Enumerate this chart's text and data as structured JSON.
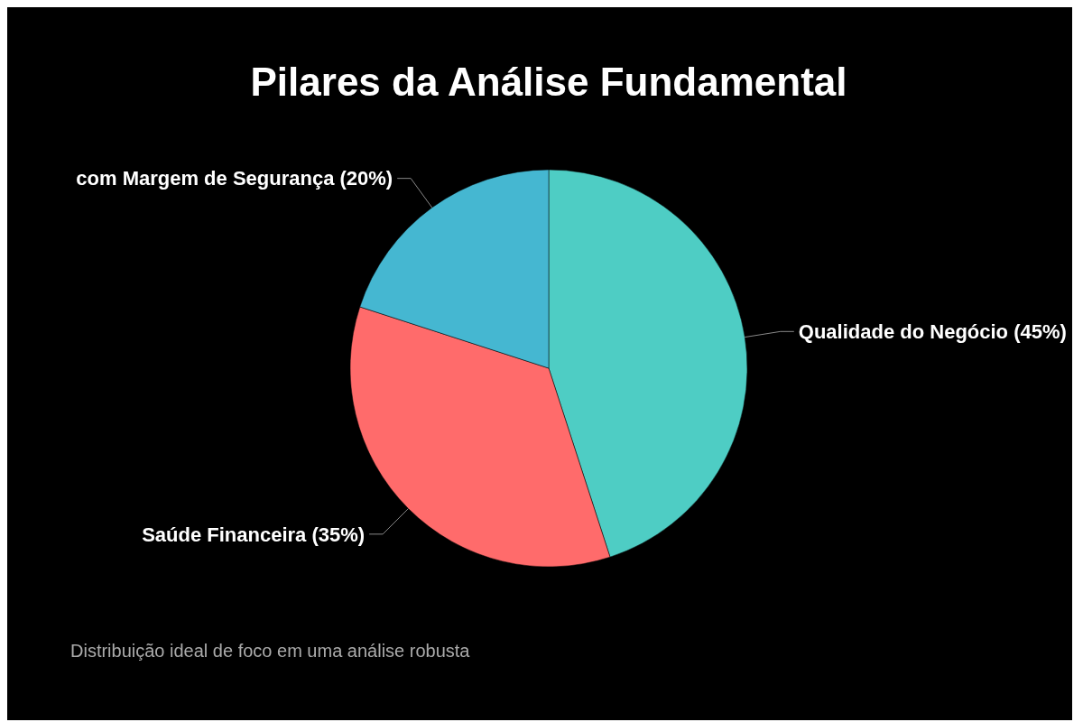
{
  "chart_data": {
    "type": "pie",
    "title": "Pilares da Análise Fundamental",
    "categories": [
      "Qualidade do Negócio (45%)",
      "Saúde Financeira (35%)",
      "com Margem de Segurança (20%)"
    ],
    "values": [
      45,
      35,
      20
    ],
    "colors": [
      "#4ecdc4",
      "#ff6b6b",
      "#45b7d1"
    ],
    "legend": false,
    "annotations": [
      "Distribuição ideal de foco em uma análise robusta"
    ]
  }
}
